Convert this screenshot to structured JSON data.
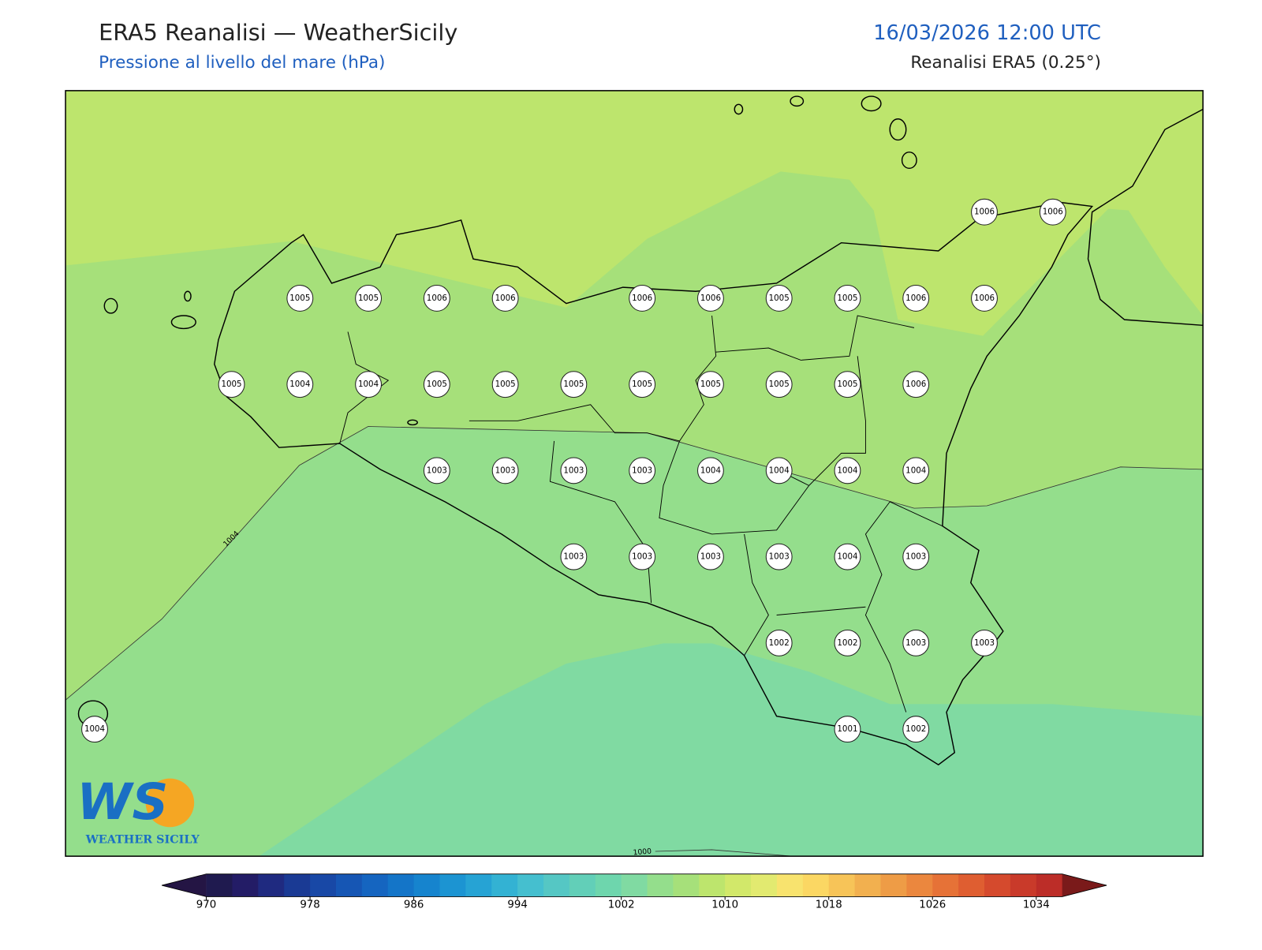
{
  "header": {
    "title": "ERA5 Reanalisi — WeatherSicily",
    "subtitle": "Pressione al livello del mare (hPa)",
    "datetime": "16/03/2026 12:00 UTC",
    "source": "Reanalisi ERA5 (0.25°)"
  },
  "stations": [
    [
      null,
      null,
      null,
      null,
      null,
      null,
      null,
      null,
      null,
      null,
      null,
      null,
      null,
      1006,
      1006
    ],
    [
      null,
      null,
      null,
      1005,
      1005,
      1006,
      1006,
      null,
      1006,
      1006,
      1005,
      1005,
      1006,
      1006,
      null
    ],
    [
      null,
      null,
      1005,
      1004,
      1004,
      1005,
      1005,
      1005,
      1005,
      1005,
      1005,
      1005,
      1006,
      null,
      null
    ],
    [
      null,
      null,
      null,
      null,
      null,
      1003,
      1003,
      1003,
      1003,
      1004,
      1004,
      1004,
      1004,
      null,
      null
    ],
    [
      null,
      null,
      null,
      null,
      null,
      null,
      null,
      1003,
      1003,
      1003,
      1003,
      1004,
      1003,
      null,
      null
    ],
    [
      null,
      null,
      null,
      null,
      null,
      null,
      null,
      null,
      null,
      null,
      1002,
      1002,
      1003,
      1003,
      null
    ],
    [
      1004,
      null,
      null,
      null,
      null,
      null,
      null,
      null,
      null,
      null,
      null,
      1001,
      1002,
      null,
      null
    ]
  ],
  "contour_labels": [
    1004,
    1000
  ],
  "colorbar": {
    "clim": [
      970,
      1036
    ],
    "ticks": [
      970,
      978,
      986,
      994,
      1002,
      1010,
      1018,
      1026,
      1034
    ],
    "colors": [
      "#1f1a4f",
      "#231c66",
      "#1f2a80",
      "#1a3a94",
      "#1848a6",
      "#1656b4",
      "#1565c0",
      "#1475c8",
      "#1684ce",
      "#1c94d2",
      "#26a3d4",
      "#33b2d3",
      "#45bfcf",
      "#55c7c4",
      "#62cfb8",
      "#6ed6ad",
      "#80daa2",
      "#94de8c",
      "#a6e07a",
      "#bde56d",
      "#d2e86a",
      "#e2ea70",
      "#f8e36e",
      "#fbd763",
      "#f7c458",
      "#f2b04f",
      "#ee9c46",
      "#eb873e",
      "#e67237",
      "#df5e31",
      "#d54a2d",
      "#c93a2a",
      "#bc2d28"
    ],
    "extend_colors": [
      "#241544",
      "#7a1a1a"
    ]
  },
  "logo": {
    "mark": "WS",
    "name": "WEATHER SICILY"
  }
}
